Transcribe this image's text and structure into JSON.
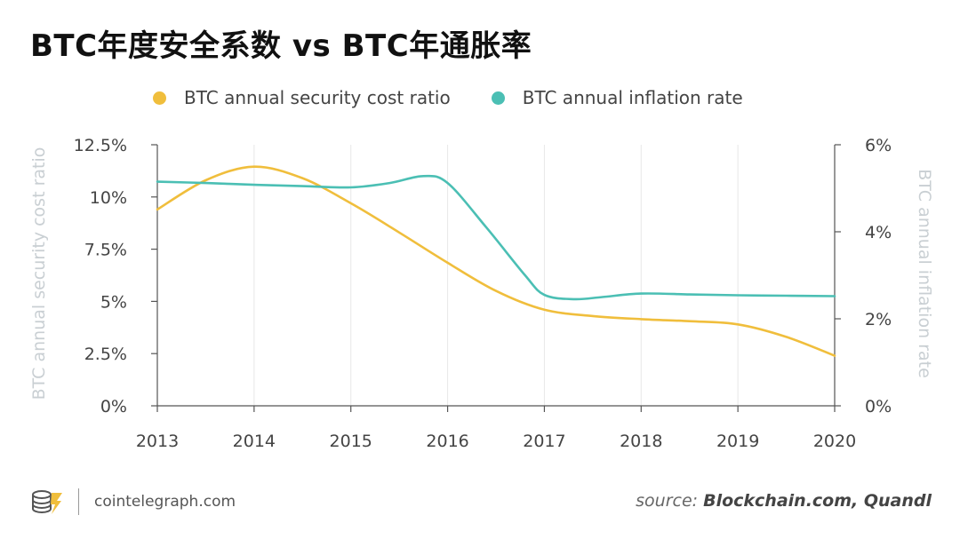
{
  "header": {
    "title": "BTC年度安全系数 vs BTC年通胀率"
  },
  "legend": {
    "items": [
      {
        "label": "BTC annual security cost ratio",
        "color": "#f0be3c"
      },
      {
        "label": "BTC annual inflation rate",
        "color": "#4bbfb4"
      }
    ]
  },
  "chart_data": {
    "type": "line",
    "title": "BTC年度安全系数 vs BTC年通胀率",
    "x_ticks": [
      "2013",
      "2014",
      "2015",
      "2016",
      "2017",
      "2018",
      "2019",
      "2020"
    ],
    "xlim": [
      2013,
      2020
    ],
    "y_left": {
      "label": "BTC annual security cost ratio",
      "lim": [
        0,
        12.5
      ],
      "ticks": [
        0,
        2.5,
        5,
        7.5,
        10,
        12.5
      ],
      "tick_labels": [
        "0%",
        "2.5%",
        "5%",
        "7.5%",
        "10%",
        "12.5%"
      ]
    },
    "y_right": {
      "label": "BTC annual inflation rate",
      "lim": [
        0,
        6
      ],
      "ticks": [
        0,
        2,
        4,
        6
      ],
      "tick_labels": [
        "0%",
        "2%",
        "4%",
        "6%"
      ]
    },
    "grid": "vertical",
    "legend_position": "top",
    "series": [
      {
        "name": "BTC annual security cost ratio",
        "axis": "left",
        "color": "#f0be3c",
        "x": [
          2013,
          2013.5,
          2014,
          2014.5,
          2015,
          2015.5,
          2016,
          2016.5,
          2017,
          2017.5,
          2018,
          2018.5,
          2019,
          2019.5,
          2020
        ],
        "y": [
          9.4,
          10.8,
          11.45,
          10.9,
          9.7,
          8.3,
          6.85,
          5.5,
          4.6,
          4.3,
          4.15,
          4.05,
          3.9,
          3.3,
          2.4
        ]
      },
      {
        "name": "BTC annual inflation rate",
        "axis": "right",
        "color": "#4bbfb4",
        "x": [
          2013,
          2013.5,
          2014,
          2014.5,
          2015,
          2015.4,
          2015.75,
          2016,
          2016.4,
          2016.8,
          2017,
          2017.3,
          2017.6,
          2018,
          2018.5,
          2019,
          2019.5,
          2020
        ],
        "y": [
          5.15,
          5.12,
          5.08,
          5.05,
          5.02,
          5.12,
          5.28,
          5.12,
          4.1,
          3.0,
          2.55,
          2.45,
          2.5,
          2.58,
          2.56,
          2.54,
          2.53,
          2.52
        ]
      }
    ]
  },
  "footer": {
    "site": "cointelegraph.com",
    "source_prefix": "source: ",
    "source_names": "Blockchain.com, Quandl"
  }
}
